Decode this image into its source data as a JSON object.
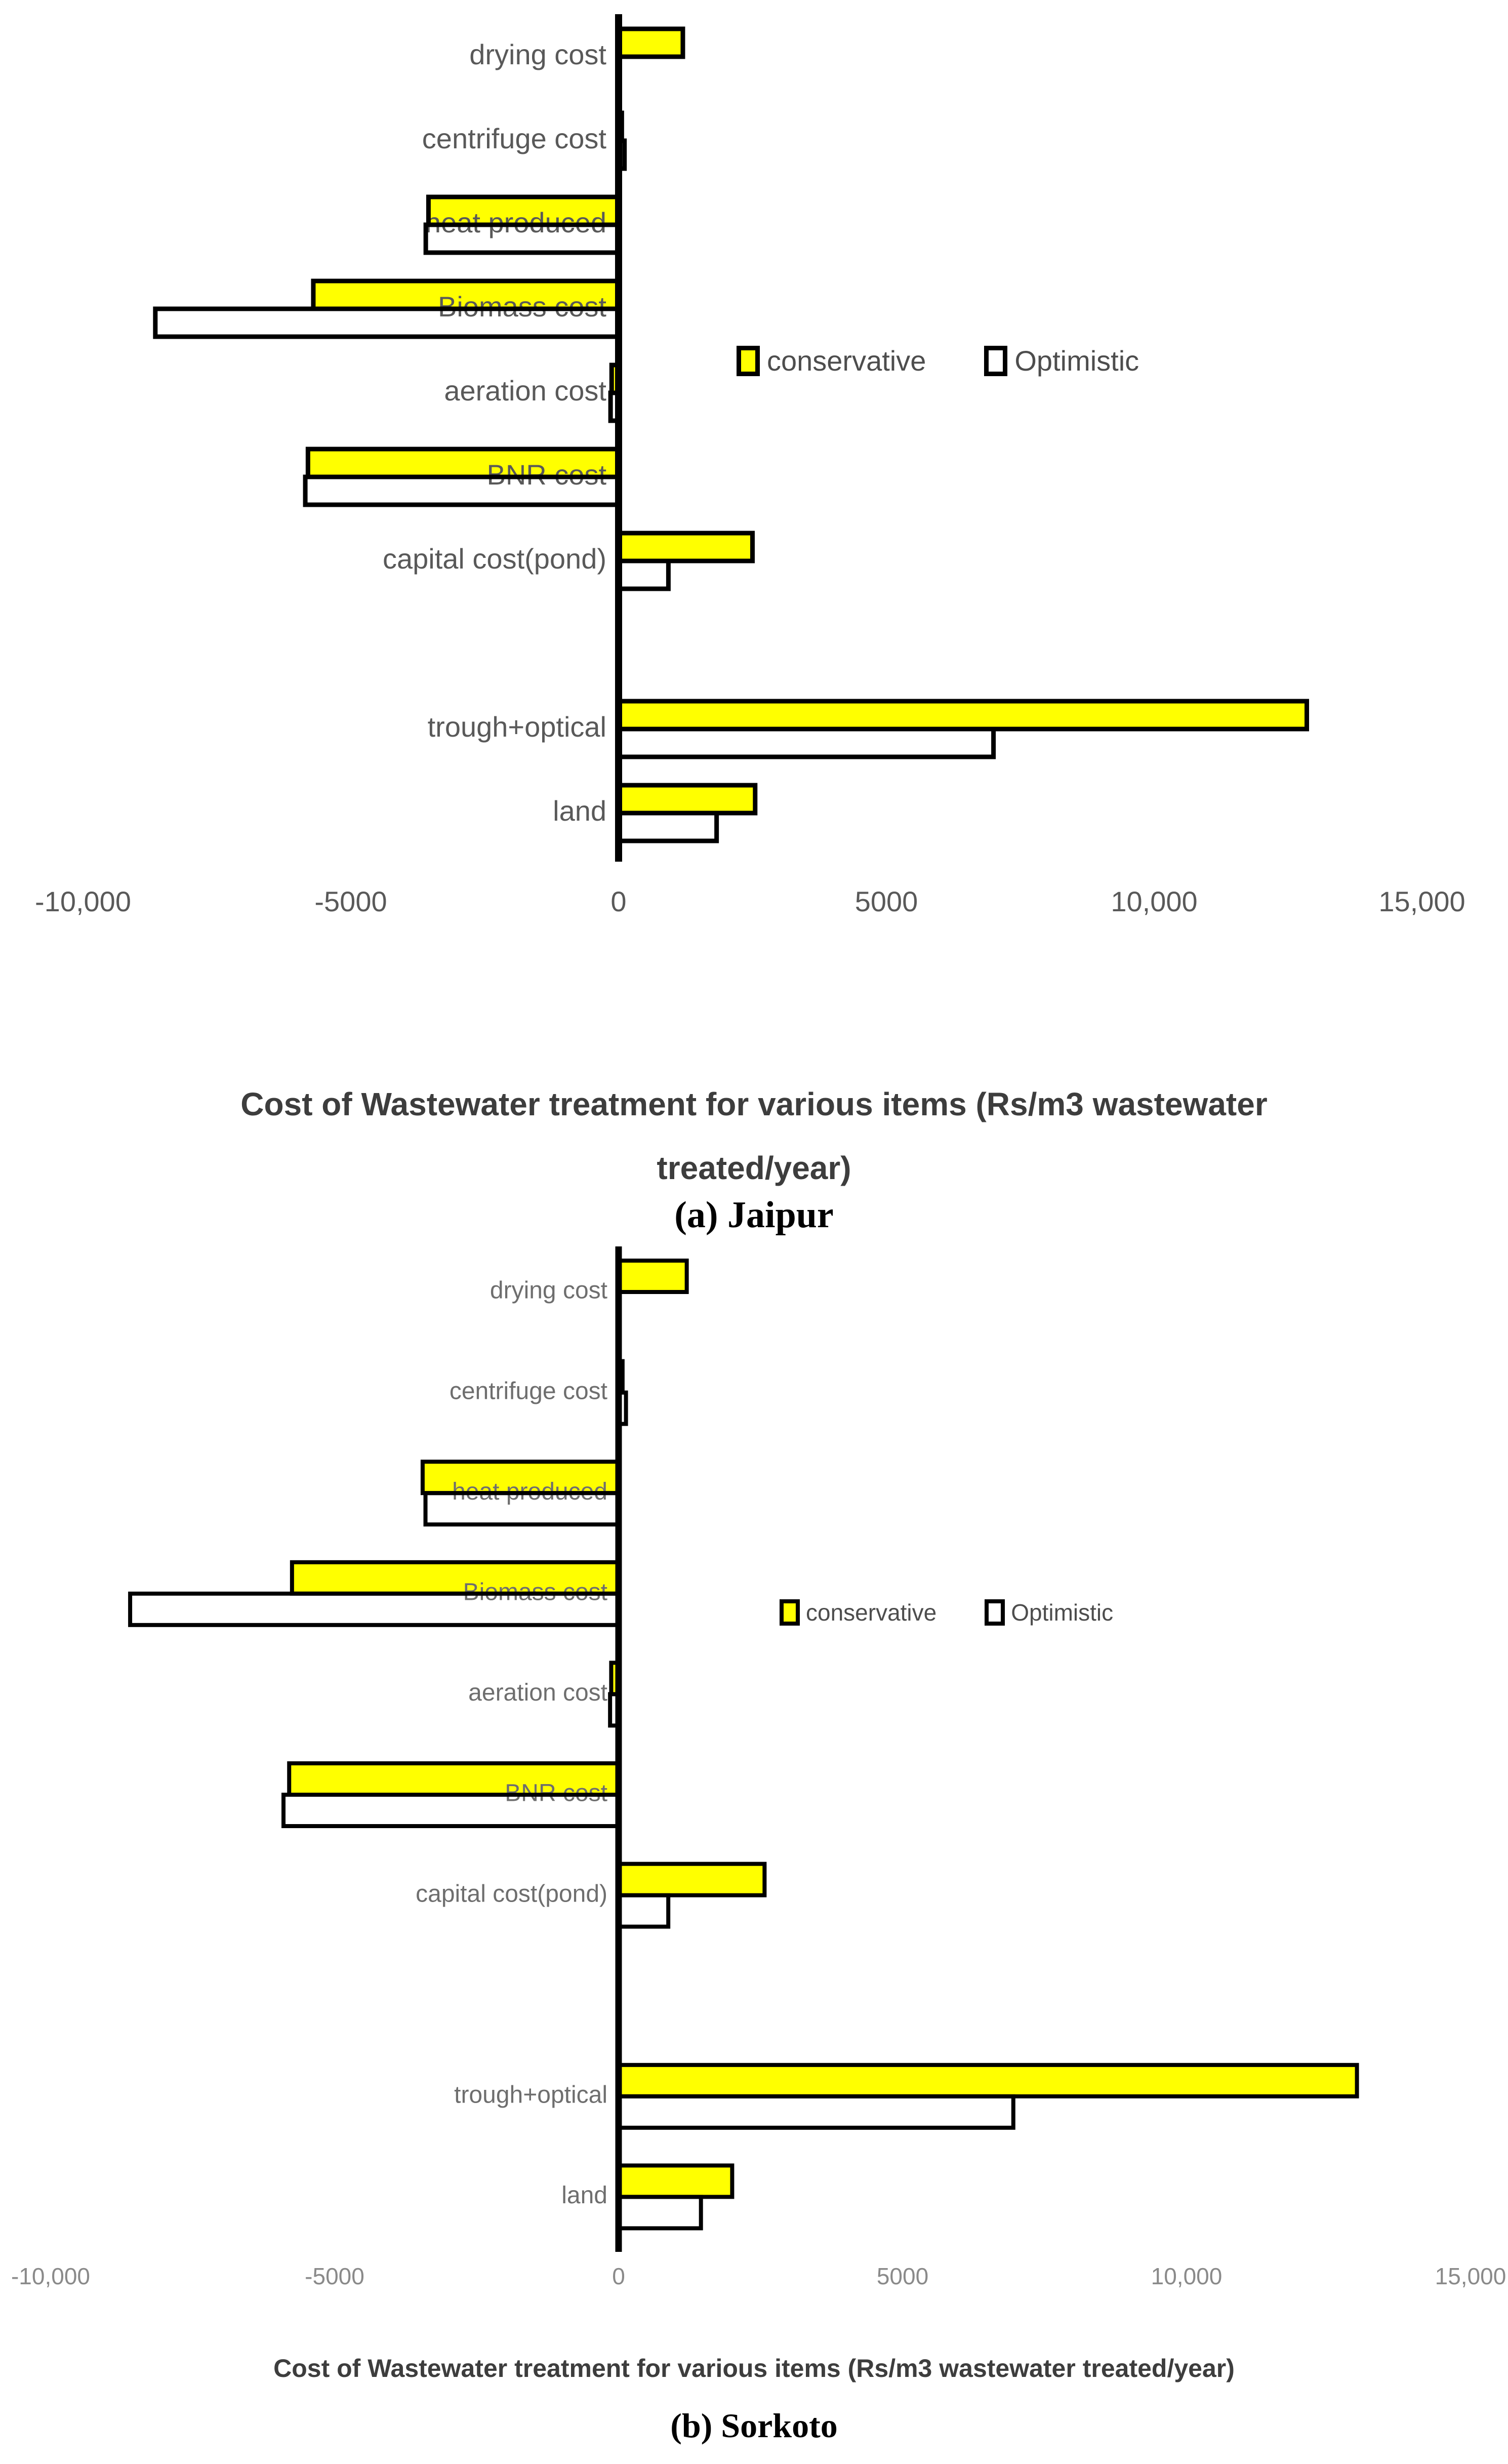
{
  "page": {
    "background": "#ffffff"
  },
  "chart_data": [
    {
      "type": "bar",
      "orientation": "horizontal",
      "region": "Jaipur",
      "caption": "(a) Jaipur",
      "title": "Cost of Wastewater treatment for various items (Rs/m3 wastewater treated/year)",
      "title_lines": [
        "Cost of Wastewater treatment for various items (Rs/m3 wastewater",
        "treated/year)"
      ],
      "categories": [
        "drying cost",
        "centrifuge cost",
        "heat produced",
        "Biomass cost",
        "aeration cost",
        "BNR cost",
        "capital cost(pond)",
        "",
        "trough+optical",
        "land"
      ],
      "series": [
        {
          "name": "conservative",
          "color": "#ffff00",
          "values": [
            1200,
            60,
            -3550,
            -5700,
            -130,
            -5800,
            2500,
            null,
            12850,
            2550
          ]
        },
        {
          "name": "Optimistic",
          "color": "#ffffff",
          "values": [
            0,
            110,
            -3600,
            -8650,
            -150,
            -5850,
            930,
            null,
            7000,
            1830
          ]
        }
      ],
      "xlim": [
        -10000,
        15000
      ],
      "xtick_values": [
        -10000,
        -5000,
        0,
        5000,
        10000,
        15000
      ],
      "xticks": [
        "-10,000",
        "-5000",
        "0",
        "5000",
        "10,000",
        "15,000"
      ],
      "legend_position": "middle-right",
      "grid": false,
      "bar_border_color": "#000000"
    },
    {
      "type": "bar",
      "orientation": "horizontal",
      "region": "Sorkoto",
      "caption": "(b) Sorkoto",
      "title": "Cost of Wastewater treatment for various items (Rs/m3 wastewater treated/year)",
      "title_lines": [
        "Cost of Wastewater treatment for various items (Rs/m3 wastewater treated/year)"
      ],
      "categories": [
        "drying cost",
        "centrifuge cost",
        "heat produced",
        "Biomass cost",
        "aeration cost",
        "BNR cost",
        "capital cost(pond)",
        "",
        "trough+optical",
        "land"
      ],
      "series": [
        {
          "name": "conservative",
          "color": "#ffff00",
          "values": [
            1200,
            70,
            -3450,
            -5750,
            -130,
            -5800,
            2570,
            null,
            13000,
            2000
          ]
        },
        {
          "name": "Optimistic",
          "color": "#ffffff",
          "values": [
            0,
            130,
            -3400,
            -8600,
            -150,
            -5900,
            875,
            null,
            6950,
            1450
          ]
        }
      ],
      "xlim": [
        -10000,
        15000
      ],
      "xtick_values": [
        -10000,
        -5000,
        0,
        5000,
        10000,
        15000
      ],
      "xticks": [
        "-10,000",
        "-5000",
        "0",
        "5000",
        "10,000",
        "15,000"
      ],
      "legend_position": "middle-right",
      "grid": false,
      "bar_border_color": "#000000"
    }
  ]
}
